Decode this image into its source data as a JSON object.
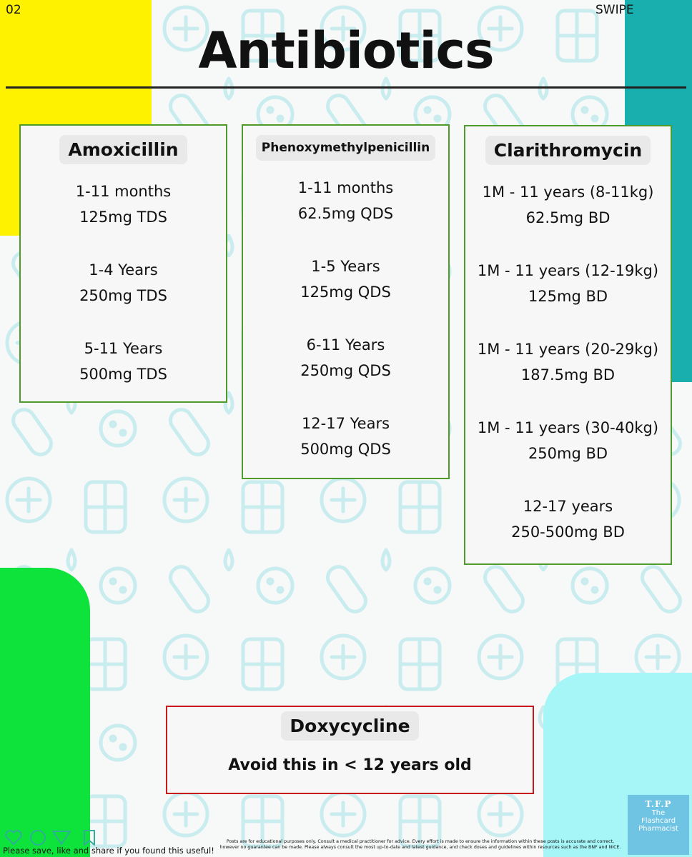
{
  "header": {
    "page_number": "02",
    "swipe": "SWIPE",
    "title": "Antibiotics"
  },
  "cards": {
    "amoxicillin": {
      "title": "Amoxicillin",
      "doses": [
        {
          "age": "1-11 months",
          "dose": "125mg TDS"
        },
        {
          "age": "1-4 Years",
          "dose": "250mg TDS"
        },
        {
          "age": "5-11 Years",
          "dose": "500mg TDS"
        }
      ]
    },
    "phenoxymethylpenicillin": {
      "title": "Phenoxymethylpenicillin",
      "doses": [
        {
          "age": "1-11 months",
          "dose": "62.5mg QDS"
        },
        {
          "age": "1-5 Years",
          "dose": "125mg QDS"
        },
        {
          "age": "6-11 Years",
          "dose": "250mg QDS"
        },
        {
          "age": "12-17 Years",
          "dose": "500mg QDS"
        }
      ]
    },
    "clarithromycin": {
      "title": "Clarithromycin",
      "doses": [
        {
          "age": "1M - 11 years (8-11kg)",
          "dose": "62.5mg BD"
        },
        {
          "age": "1M - 11 years (12-19kg)",
          "dose": "125mg BD"
        },
        {
          "age": "1M - 11 years (20-29kg)",
          "dose": "187.5mg BD"
        },
        {
          "age": "1M - 11 years (30-40kg)",
          "dose": "250mg BD"
        },
        {
          "age": "12-17 years",
          "dose": "250-500mg BD"
        }
      ]
    },
    "doxycycline": {
      "title": "Doxycycline",
      "note": "Avoid this in < 12 years old"
    }
  },
  "footer": {
    "share_text": "Please save, like and share if you found this useful!",
    "disclaimer": "Posts are for educational purposes only. Consult a medical practitioner for advice. Every effort is made to ensure the information within these posts is accurate and correct, however no guarantee can be made. Please always consult the most up-to-date and latest guidance, and check doses and guidelines within resources such as the BNF and NICE.",
    "logo": {
      "mark": "T.F.P",
      "line1": "The",
      "line2": "Flashcard",
      "line3": "Pharmacist"
    },
    "icons": [
      "heart-icon",
      "chat-icon",
      "send-icon",
      "bookmark-icon"
    ]
  }
}
